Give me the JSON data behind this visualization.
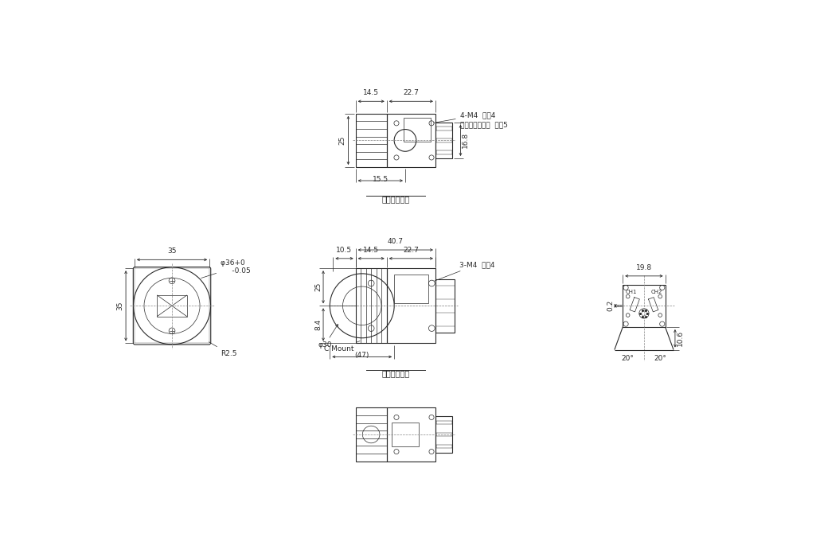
{
  "line_color": "#2a2a2a",
  "dim_color": "#2a2a2a",
  "thin_lw": 0.5,
  "medium_lw": 0.8,
  "thick_lw": 1.2,
  "font_size": 6.5,
  "font_family": "DejaVu Sans",
  "top_view_note1": "4-M4  深さ4",
  "top_view_note2": "カメラ三脚ネジ  深さ5",
  "top_view_label": "対面同一形状",
  "front_view_label": "対面同一形状",
  "front_view_3m4": "3-M4  深さ4",
  "front_view_cmount": "C Mount",
  "left_view_phi36": "φ36",
  "left_view_phi36_tol": "+0\n-0.05",
  "left_view_r25": "R2.5",
  "right_view_ch1": "CH1",
  "right_view_ch2": "CH2"
}
